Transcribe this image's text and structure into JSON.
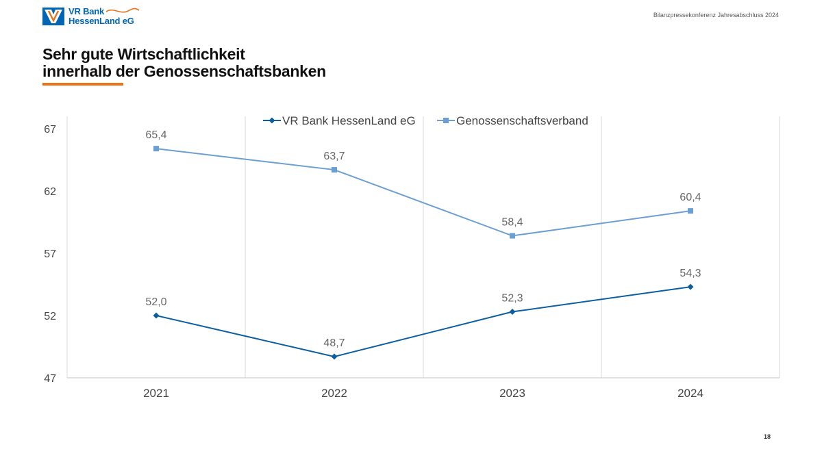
{
  "header": {
    "logo_line1": "VR Bank",
    "logo_line2": "HessenLand eG",
    "event": "Bilanzpressekonferenz Jahresabschluss 2024"
  },
  "slide": {
    "title_line1": "Sehr gute Wirtschaftlichkeit",
    "title_line2": "innerhalb der Genossenschaftsbanken",
    "page_number": "18"
  },
  "colors": {
    "brand_blue": "#0066b3",
    "accent_orange": "#e8731a",
    "series_dark": "#0b5fa0",
    "series_light": "#6b9fd2"
  },
  "chart_data": {
    "type": "line",
    "title": "",
    "xlabel": "",
    "ylabel": "",
    "categories": [
      "2021",
      "2022",
      "2023",
      "2024"
    ],
    "ylim": [
      47,
      67
    ],
    "yticks": [
      47,
      52,
      57,
      62,
      67
    ],
    "grid": "vertical",
    "legend_position": "top",
    "series": [
      {
        "name": "VR Bank HessenLand eG",
        "values": [
          52.0,
          48.7,
          52.3,
          54.3
        ],
        "labels": [
          "52,0",
          "48,7",
          "52,3",
          "54,3"
        ],
        "marker": "diamond",
        "color": "#0b5fa0"
      },
      {
        "name": "Genossenschaftsverband",
        "values": [
          65.4,
          63.7,
          58.4,
          60.4
        ],
        "labels": [
          "65,4",
          "63,7",
          "58,4",
          "60,4"
        ],
        "marker": "square",
        "color": "#6b9fd2"
      }
    ]
  }
}
